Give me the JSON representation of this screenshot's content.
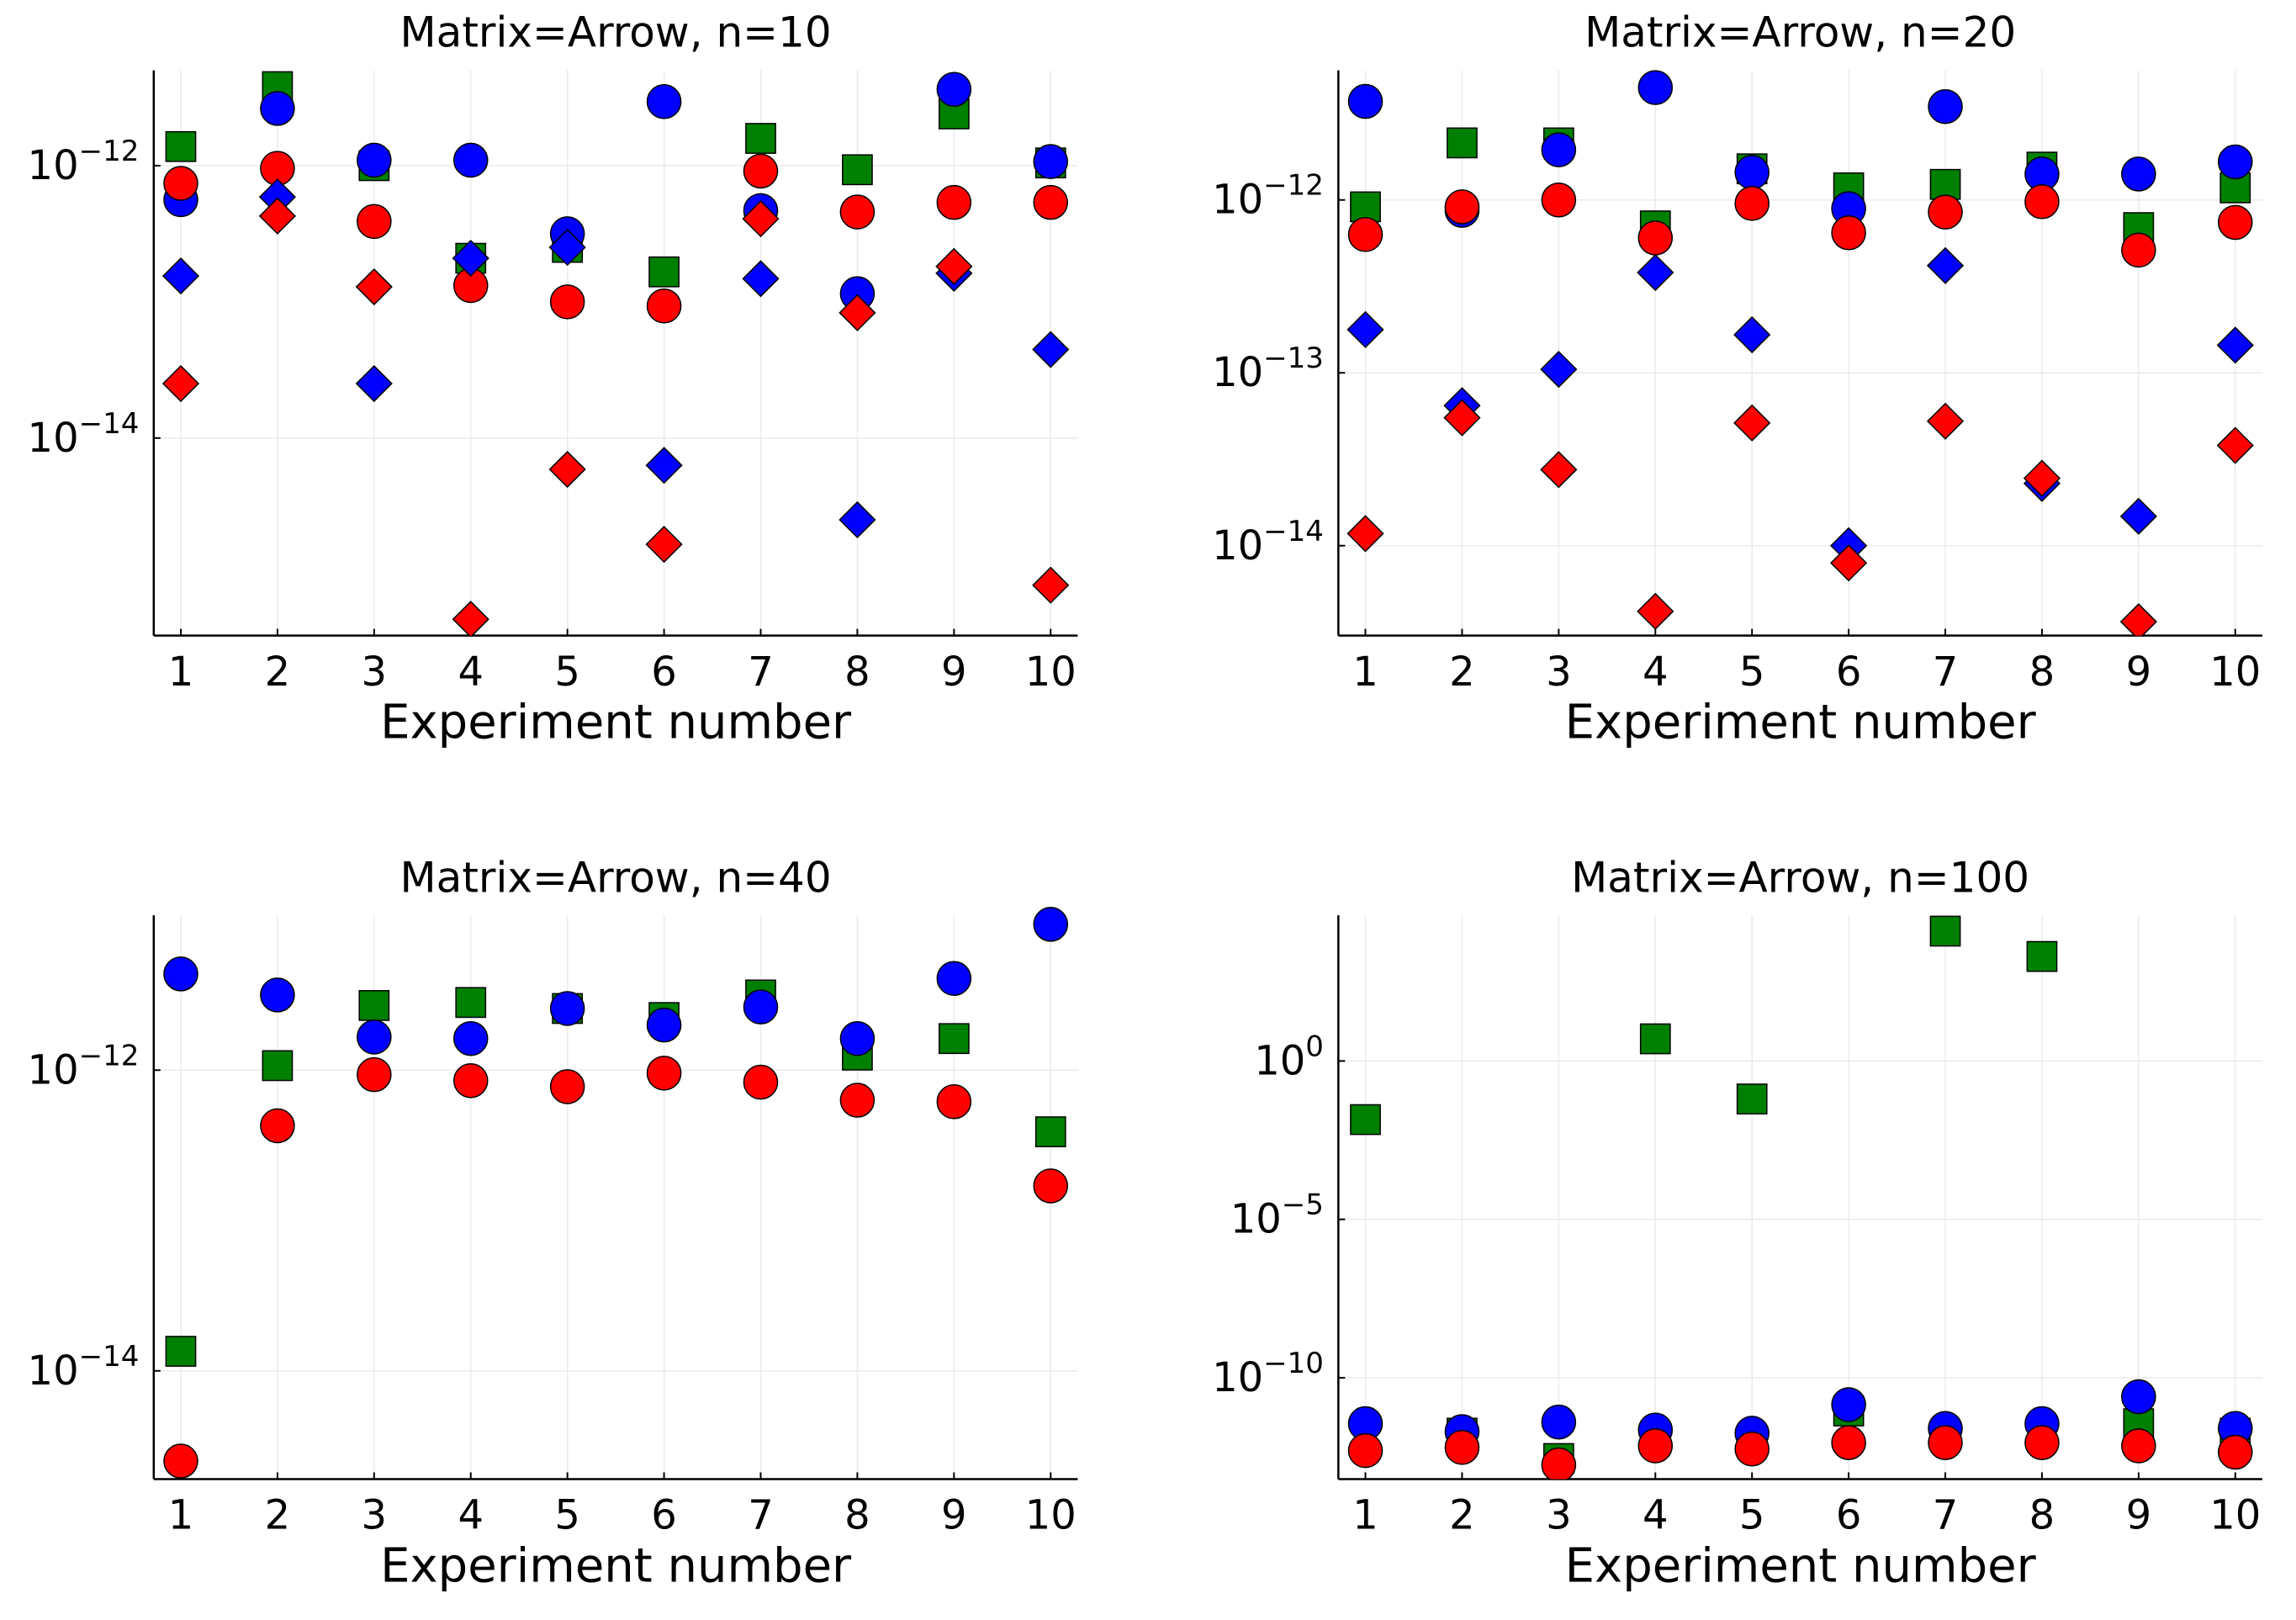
{
  "chart_data": [
    {
      "type": "scatter",
      "title": "Matrix=Arrow, n=10",
      "xlabel": "Experiment number",
      "ylabel": "",
      "yscale": "log10",
      "ylim_exp": [
        -15.45,
        -11.3
      ],
      "xlim": [
        0.72,
        10.28
      ],
      "grid": true,
      "x": [
        1,
        2,
        3,
        4,
        5,
        6,
        7,
        8,
        9,
        10
      ],
      "xticks": [
        "1",
        "2",
        "3",
        "4",
        "5",
        "6",
        "7",
        "8",
        "9",
        "10"
      ],
      "yticks": [
        {
          "exp": -12,
          "label_base": "10",
          "label_exp": "−12"
        },
        {
          "exp": -14,
          "label_base": "10",
          "label_exp": "−14"
        }
      ],
      "series": [
        {
          "name": "series-1",
          "marker": "square",
          "color": "#008000",
          "log10_values": [
            -11.86,
            -11.42,
            -12.0,
            -12.68,
            -12.6,
            -12.78,
            -11.8,
            -12.03,
            -11.62,
            -11.98
          ]
        },
        {
          "name": "series-2",
          "marker": "circle",
          "color": "#0000ff",
          "log10_values": [
            -12.25,
            -11.58,
            -11.96,
            -11.96,
            -12.5,
            -11.53,
            -12.33,
            -12.94,
            -11.44,
            -11.97
          ]
        },
        {
          "name": "series-3",
          "marker": "circle",
          "color": "#ff0000",
          "log10_values": [
            -12.13,
            -12.02,
            -12.41,
            -12.88,
            -13.0,
            -13.03,
            -12.04,
            -12.34,
            -12.27,
            -12.27
          ]
        },
        {
          "name": "series-4",
          "marker": "diamond",
          "color": "#0000ff",
          "log10_values": [
            -12.81,
            -12.23,
            -13.6,
            -12.68,
            -12.6,
            -14.2,
            -12.83,
            -14.6,
            -12.79,
            -13.35
          ]
        },
        {
          "name": "series-5",
          "marker": "diamond",
          "color": "#ff0000",
          "log10_values": [
            -13.6,
            -12.37,
            -12.89,
            -15.33,
            -14.23,
            -14.78,
            -12.39,
            -13.08,
            -12.74,
            -15.08
          ]
        }
      ]
    },
    {
      "type": "scatter",
      "title": "Matrix=Arrow, n=20",
      "xlabel": "Experiment number",
      "ylabel": "",
      "yscale": "log10",
      "ylim_exp": [
        -14.52,
        -11.25
      ],
      "xlim": [
        0.72,
        10.28
      ],
      "grid": true,
      "x": [
        1,
        2,
        3,
        4,
        5,
        6,
        7,
        8,
        9,
        10
      ],
      "xticks": [
        "1",
        "2",
        "3",
        "4",
        "5",
        "6",
        "7",
        "8",
        "9",
        "10"
      ],
      "yticks": [
        {
          "exp": -12,
          "label_base": "10",
          "label_exp": "−12"
        },
        {
          "exp": -13,
          "label_base": "10",
          "label_exp": "−13"
        },
        {
          "exp": -14,
          "label_base": "10",
          "label_exp": "−14"
        }
      ],
      "series": [
        {
          "name": "series-1",
          "marker": "square",
          "color": "#008000",
          "log10_values": [
            -12.04,
            -11.67,
            -11.67,
            -12.15,
            -11.82,
            -11.93,
            -11.91,
            -11.81,
            -12.16,
            -11.93
          ]
        },
        {
          "name": "series-2",
          "marker": "circle",
          "color": "#0000ff",
          "log10_values": [
            -11.43,
            -12.06,
            -11.71,
            -11.35,
            -11.84,
            -12.05,
            -11.46,
            -11.85,
            -11.85,
            -11.78
          ]
        },
        {
          "name": "series-3",
          "marker": "circle",
          "color": "#ff0000",
          "log10_values": [
            -12.2,
            -12.04,
            -12.0,
            -12.22,
            -12.02,
            -12.19,
            -12.07,
            -12.01,
            -12.29,
            -12.13
          ]
        },
        {
          "name": "series-4",
          "marker": "diamond",
          "color": "#0000ff",
          "log10_values": [
            -12.75,
            -13.19,
            -12.98,
            -12.42,
            -12.78,
            -14.0,
            -12.38,
            -13.64,
            -13.83,
            -12.84
          ]
        },
        {
          "name": "series-5",
          "marker": "diamond",
          "color": "#ff0000",
          "log10_values": [
            -13.93,
            -13.26,
            -13.56,
            -14.38,
            -13.29,
            -14.1,
            -13.28,
            -13.61,
            -14.44,
            -13.42
          ]
        }
      ]
    },
    {
      "type": "scatter",
      "title": "Matrix=Arrow, n=40",
      "xlabel": "Experiment number",
      "ylabel": "",
      "yscale": "log10",
      "ylim_exp": [
        -14.72,
        -10.97
      ],
      "xlim": [
        0.72,
        10.28
      ],
      "grid": true,
      "x": [
        1,
        2,
        3,
        4,
        5,
        6,
        7,
        8,
        9,
        10
      ],
      "xticks": [
        "1",
        "2",
        "3",
        "4",
        "5",
        "6",
        "7",
        "8",
        "9",
        "10"
      ],
      "yticks": [
        {
          "exp": -12,
          "label_base": "10",
          "label_exp": "−12"
        },
        {
          "exp": -14,
          "label_base": "10",
          "label_exp": "−14"
        }
      ],
      "series": [
        {
          "name": "series-1",
          "marker": "square",
          "color": "#008000",
          "log10_values": [
            -13.87,
            -11.97,
            -11.57,
            -11.55,
            -11.59,
            -11.65,
            -11.5,
            -11.9,
            -11.79,
            -12.41
          ]
        },
        {
          "name": "series-2",
          "marker": "circle",
          "color": "#0000ff",
          "log10_values": [
            -11.36,
            -11.5,
            -11.78,
            -11.79,
            -11.59,
            -11.7,
            -11.58,
            -11.79,
            -11.39,
            -11.03
          ]
        },
        {
          "name": "series-3",
          "marker": "circle",
          "color": "#ff0000",
          "log10_values": [
            -14.6,
            -12.37,
            -12.03,
            -12.07,
            -12.11,
            -12.02,
            -12.08,
            -12.2,
            -12.21,
            -12.77
          ]
        }
      ]
    },
    {
      "type": "scatter",
      "title": "Matrix=Arrow, n=100",
      "xlabel": "Experiment number",
      "ylabel": "",
      "yscale": "log10",
      "ylim_exp": [
        -13.2,
        4.6
      ],
      "xlim": [
        0.72,
        10.28
      ],
      "grid": true,
      "x": [
        1,
        2,
        3,
        4,
        5,
        6,
        7,
        8,
        9,
        10
      ],
      "xticks": [
        "1",
        "2",
        "3",
        "4",
        "5",
        "6",
        "7",
        "8",
        "9",
        "10"
      ],
      "yticks": [
        {
          "exp": 0,
          "label_base": "10",
          "label_exp": "0"
        },
        {
          "exp": -5,
          "label_base": "10",
          "label_exp": "−5"
        },
        {
          "exp": -10,
          "label_base": "10",
          "label_exp": "−10"
        }
      ],
      "series": [
        {
          "name": "series-1",
          "marker": "square",
          "color": "#008000",
          "log10_values": [
            -1.85,
            -11.75,
            -12.55,
            0.7,
            -1.2,
            -11.05,
            4.1,
            3.3,
            -11.45,
            -11.75
          ]
        },
        {
          "name": "series-2",
          "marker": "circle",
          "color": "#0000ff",
          "log10_values": [
            -11.45,
            -11.7,
            -11.4,
            -11.65,
            -11.75,
            -10.85,
            -11.6,
            -11.45,
            -10.6,
            -11.6
          ]
        },
        {
          "name": "series-3",
          "marker": "circle",
          "color": "#ff0000",
          "log10_values": [
            -12.3,
            -12.2,
            -12.75,
            -12.15,
            -12.25,
            -12.05,
            -12.05,
            -12.05,
            -12.15,
            -12.35
          ]
        }
      ]
    }
  ]
}
